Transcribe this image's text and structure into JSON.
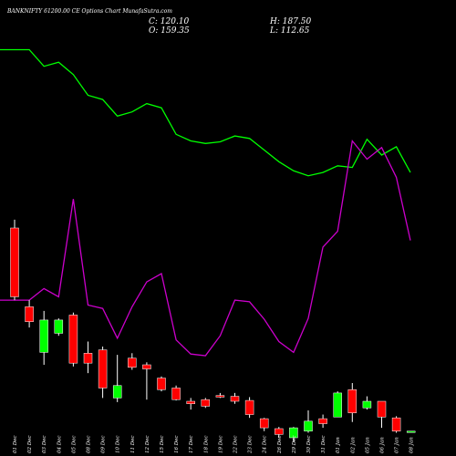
{
  "header": {
    "title": "BANKNIFTY 61200.00 CE Options Chart MunafaSutra.com",
    "close": "C: 120.10",
    "open": "O: 159.35",
    "high": "H: 187.50",
    "low": "L: 112.65"
  },
  "colors": {
    "background": "#000000",
    "up": "#00ff00",
    "down": "#ff0000",
    "line_green": "#00ff00",
    "line_magenta": "#cc00cc",
    "text": "#ffffff"
  },
  "chart_data": {
    "type": "candlestick",
    "title": "BANKNIFTY 61200.00 CE Options Chart MunafaSutra.com",
    "x": [
      "01 Dec",
      "02 Dec",
      "03 Dec",
      "04 Dec",
      "05 Dec",
      "08 Dec",
      "09 Dec",
      "10 Dec",
      "11 Dec",
      "12 Dec",
      "15 Dec",
      "16 Dec",
      "17 Dec",
      "18 Dec",
      "19 Dec",
      "22 Dec",
      "23 Dec",
      "24 Dec",
      "26 Dec",
      "29 Dec",
      "30 Dec",
      "31 Dec",
      "01 Jan",
      "02 Jan",
      "05 Jan",
      "06 Jan",
      "07 Jan",
      "08 Jan"
    ],
    "candles": [
      {
        "open": 755,
        "high": 765,
        "low": 668,
        "close": 672
      },
      {
        "open": 660,
        "high": 668,
        "low": 635,
        "close": 642
      },
      {
        "open": 605,
        "high": 655,
        "low": 590,
        "close": 644
      },
      {
        "open": 628,
        "high": 646,
        "low": 625,
        "close": 644
      },
      {
        "open": 650,
        "high": 653,
        "low": 588,
        "close": 592
      },
      {
        "open": 604,
        "high": 618,
        "low": 580,
        "close": 592
      },
      {
        "open": 608,
        "high": 612,
        "low": 550,
        "close": 562
      },
      {
        "open": 550,
        "high": 602,
        "low": 545,
        "close": 565
      },
      {
        "open": 598,
        "high": 604,
        "low": 584,
        "close": 587
      },
      {
        "open": 590,
        "high": 593,
        "low": 548,
        "close": 585
      },
      {
        "open": 574,
        "high": 576,
        "low": 558,
        "close": 560
      },
      {
        "open": 562,
        "high": 565,
        "low": 547,
        "close": 548
      },
      {
        "open": 546,
        "high": 550,
        "low": 536,
        "close": 543
      },
      {
        "open": 548,
        "high": 550,
        "low": 538,
        "close": 540
      },
      {
        "open": 553,
        "high": 556,
        "low": 550,
        "close": 551
      },
      {
        "open": 552,
        "high": 556,
        "low": 543,
        "close": 546
      },
      {
        "open": 547,
        "high": 551,
        "low": 526,
        "close": 530
      },
      {
        "open": 525,
        "high": 526,
        "low": 510,
        "close": 514
      },
      {
        "open": 513,
        "high": 515,
        "low": 502,
        "close": 506
      },
      {
        "open": 502,
        "high": 515,
        "low": 497,
        "close": 514
      },
      {
        "open": 510,
        "high": 535,
        "low": 508,
        "close": 522
      },
      {
        "open": 525,
        "high": 530,
        "low": 514,
        "close": 519
      },
      {
        "open": 527,
        "high": 558,
        "low": 527,
        "close": 556
      },
      {
        "open": 560,
        "high": 568,
        "low": 521,
        "close": 532
      },
      {
        "open": 538,
        "high": 552,
        "low": 536,
        "close": 546
      },
      {
        "open": 546,
        "high": 546,
        "low": 514,
        "close": 527
      },
      {
        "open": 526,
        "high": 528,
        "low": 508,
        "close": 510
      },
      {
        "open": 510,
        "high": 510,
        "low": 510,
        "close": 510
      }
    ],
    "series": [
      {
        "type": "line",
        "color": "#00ff00",
        "values": [
          970,
          970,
          950,
          955,
          940,
          915,
          910,
          890,
          895,
          905,
          900,
          868,
          860,
          857,
          859,
          866,
          863,
          849,
          835,
          824,
          818,
          822,
          830,
          828,
          862,
          843,
          853,
          822
        ]
      },
      {
        "type": "line",
        "color": "#cc00cc",
        "values": [
          668,
          668,
          682,
          672,
          790,
          662,
          658,
          622,
          660,
          690,
          700,
          620,
          603,
          601,
          625,
          668,
          666,
          645,
          618,
          605,
          646,
          732,
          751,
          860,
          838,
          852,
          816,
          740
        ]
      }
    ],
    "ylim": [
      480,
      1030
    ],
    "grid": false,
    "legend": "none"
  }
}
